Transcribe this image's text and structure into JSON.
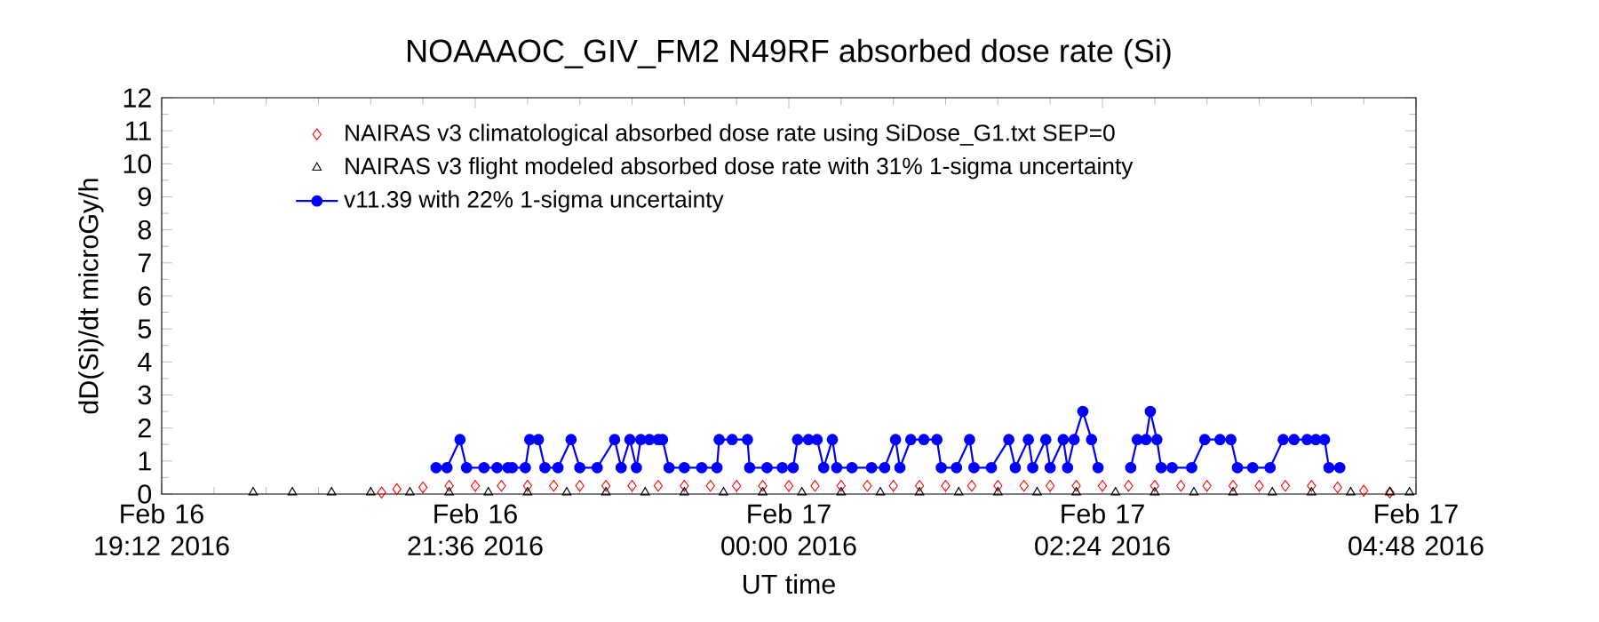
{
  "chart_data": {
    "type": "line",
    "title": "NOAAAOC_GIV_FM2 N49RF  absorbed dose rate (Si)",
    "xlabel": "UT time",
    "ylabel": "dD(Si)/dt microGy/h",
    "xlim": [
      "2016-02-16T19:12",
      "2016-02-17T04:48"
    ],
    "xticks": [
      {
        "value": "2016-02-16T19:12",
        "label": "Feb 16 19:12 2016"
      },
      {
        "value": "2016-02-16T21:36",
        "label": "Feb 16 21:36 2016"
      },
      {
        "value": "2016-02-17T00:00",
        "label": "Feb 17 00:00 2016"
      },
      {
        "value": "2016-02-17T02:24",
        "label": "Feb 17 02:24 2016"
      },
      {
        "value": "2016-02-17T04:48",
        "label": "Feb 17 04:48 2016"
      }
    ],
    "ylim": [
      0,
      12
    ],
    "yticks": [
      0,
      1,
      2,
      3,
      4,
      5,
      6,
      7,
      8,
      9,
      10,
      11,
      12
    ],
    "legend": "top left",
    "series": [
      {
        "name": "NAIRAS v3 climatological absorbed dose rate using SiDose_G1.txt SEP=0",
        "type": "scatter",
        "marker": "diamond",
        "color": "#ff0000",
        "x": [
          "2016-02-16T20:53",
          "2016-02-16T21:00",
          "2016-02-16T21:12",
          "2016-02-16T21:24",
          "2016-02-16T21:36",
          "2016-02-16T21:48",
          "2016-02-16T22:00",
          "2016-02-16T22:12",
          "2016-02-16T22:24",
          "2016-02-16T22:36",
          "2016-02-16T22:48",
          "2016-02-16T23:00",
          "2016-02-16T23:12",
          "2016-02-16T23:24",
          "2016-02-16T23:36",
          "2016-02-16T23:48",
          "2016-02-17T00:00",
          "2016-02-17T00:12",
          "2016-02-17T00:24",
          "2016-02-17T00:36",
          "2016-02-17T00:48",
          "2016-02-17T01:00",
          "2016-02-17T01:12",
          "2016-02-17T01:24",
          "2016-02-17T01:36",
          "2016-02-17T01:48",
          "2016-02-17T02:00",
          "2016-02-17T02:12",
          "2016-02-17T02:24",
          "2016-02-17T02:36",
          "2016-02-17T02:48",
          "2016-02-17T03:00",
          "2016-02-17T03:12",
          "2016-02-17T03:24",
          "2016-02-17T03:36",
          "2016-02-17T03:48",
          "2016-02-17T04:00",
          "2016-02-17T04:12",
          "2016-02-17T04:24",
          "2016-02-17T04:36"
        ],
        "values": [
          0.05,
          0.15,
          0.2,
          0.25,
          0.25,
          0.25,
          0.25,
          0.25,
          0.25,
          0.25,
          0.25,
          0.25,
          0.25,
          0.25,
          0.25,
          0.25,
          0.25,
          0.25,
          0.25,
          0.25,
          0.25,
          0.25,
          0.25,
          0.25,
          0.25,
          0.25,
          0.25,
          0.25,
          0.25,
          0.25,
          0.25,
          0.25,
          0.25,
          0.25,
          0.25,
          0.25,
          0.25,
          0.2,
          0.1,
          0.05
        ]
      },
      {
        "name": "NAIRAS v3 flight modeled absorbed dose rate with 31% 1-sigma uncertainty",
        "type": "scatter",
        "marker": "triangle",
        "color": "#000000",
        "x": [
          "2016-02-16T19:54",
          "2016-02-16T20:12",
          "2016-02-16T20:30",
          "2016-02-16T20:48",
          "2016-02-16T21:06",
          "2016-02-16T21:24",
          "2016-02-16T21:42",
          "2016-02-16T22:00",
          "2016-02-16T22:18",
          "2016-02-16T22:36",
          "2016-02-16T22:54",
          "2016-02-16T23:12",
          "2016-02-16T23:30",
          "2016-02-16T23:48",
          "2016-02-17T00:06",
          "2016-02-17T00:24",
          "2016-02-17T00:42",
          "2016-02-17T01:00",
          "2016-02-17T01:18",
          "2016-02-17T01:36",
          "2016-02-17T01:54",
          "2016-02-17T02:12",
          "2016-02-17T02:30",
          "2016-02-17T02:48",
          "2016-02-17T03:06",
          "2016-02-17T03:24",
          "2016-02-17T03:42",
          "2016-02-17T04:00",
          "2016-02-17T04:18",
          "2016-02-17T04:36",
          "2016-02-17T04:45"
        ],
        "values": [
          0.05,
          0.05,
          0.05,
          0.05,
          0.05,
          0.05,
          0.05,
          0.05,
          0.05,
          0.05,
          0.05,
          0.05,
          0.05,
          0.05,
          0.05,
          0.05,
          0.05,
          0.05,
          0.05,
          0.05,
          0.05,
          0.05,
          0.05,
          0.05,
          0.05,
          0.05,
          0.05,
          0.05,
          0.05,
          0.05,
          0.05
        ]
      },
      {
        "name": "v11.39 with 22% 1-sigma uncertainty",
        "type": "line",
        "marker": "circle",
        "color": "#0000ff",
        "x": [
          "2016-02-16T21:18",
          "2016-02-16T21:23",
          "2016-02-16T21:29",
          "2016-02-16T21:32",
          "2016-02-16T21:40",
          "2016-02-16T21:46",
          "2016-02-16T21:51",
          "2016-02-16T21:52",
          "2016-02-16T21:53",
          "2016-02-16T21:59",
          "2016-02-16T22:01",
          "2016-02-16T22:05",
          "2016-02-16T22:08",
          "2016-02-16T22:14",
          "2016-02-16T22:20",
          "2016-02-16T22:24",
          "2016-02-16T22:32",
          "2016-02-16T22:40",
          "2016-02-16T22:43",
          "2016-02-16T22:47",
          "2016-02-16T22:50",
          "2016-02-16T22:52",
          "2016-02-16T22:56",
          "2016-02-16T23:00",
          "2016-02-16T23:02",
          "2016-02-16T23:05",
          "2016-02-16T23:12",
          "2016-02-16T23:20",
          "2016-02-16T23:27",
          "2016-02-16T23:28",
          "2016-02-16T23:34",
          "2016-02-16T23:41",
          "2016-02-16T23:42",
          "2016-02-16T23:50",
          "2016-02-16T23:57",
          "2016-02-17T00:02",
          "2016-02-17T00:04",
          "2016-02-17T00:09",
          "2016-02-17T00:13",
          "2016-02-17T00:16",
          "2016-02-17T00:20",
          "2016-02-17T00:22",
          "2016-02-17T00:29",
          "2016-02-17T00:38",
          "2016-02-17T00:44",
          "2016-02-17T00:49",
          "2016-02-17T00:51",
          "2016-02-17T00:56",
          "2016-02-17T01:02",
          "2016-02-17T01:08",
          "2016-02-17T01:10",
          "2016-02-17T01:17",
          "2016-02-17T01:23",
          "2016-02-17T01:25",
          "2016-02-17T01:33",
          "2016-02-17T01:41",
          "2016-02-17T01:44",
          "2016-02-17T01:50",
          "2016-02-17T01:52",
          "2016-02-17T01:58",
          "2016-02-17T02:00",
          "2016-02-17T02:06",
          "2016-02-17T02:08",
          "2016-02-17T02:11",
          "2016-02-17T02:15",
          "2016-02-17T02:19",
          "2016-02-17T02:22",
          "2016-02-17T02:28",
          "2016-02-17T02:37",
          "2016-02-17T02:40",
          "2016-02-17T02:44",
          "2016-02-17T02:46",
          "2016-02-17T02:49",
          "2016-02-17T02:51",
          "2016-02-17T02:56",
          "2016-02-17T03:05",
          "2016-02-17T03:11",
          "2016-02-17T03:18",
          "2016-02-17T03:23",
          "2016-02-17T03:26",
          "2016-02-17T03:33",
          "2016-02-17T03:41",
          "2016-02-17T03:47",
          "2016-02-17T03:52",
          "2016-02-17T03:58",
          "2016-02-17T04:02",
          "2016-02-17T04:06",
          "2016-02-17T04:08",
          "2016-02-17T04:13"
        ],
        "values": [
          0.8,
          0.8,
          1.65,
          0.8,
          0.8,
          0.8,
          0.8,
          null,
          0.8,
          0.8,
          1.65,
          1.65,
          0.8,
          0.8,
          1.65,
          0.8,
          0.8,
          1.65,
          0.8,
          1.65,
          0.8,
          1.65,
          1.65,
          1.65,
          1.65,
          0.8,
          0.8,
          0.8,
          0.8,
          1.65,
          1.65,
          1.65,
          0.8,
          0.8,
          0.8,
          0.8,
          1.65,
          1.65,
          1.65,
          0.8,
          1.65,
          0.8,
          0.8,
          0.8,
          0.8,
          1.65,
          0.8,
          1.65,
          1.65,
          1.65,
          0.8,
          0.8,
          1.65,
          0.8,
          0.8,
          1.65,
          0.8,
          1.65,
          0.8,
          1.65,
          0.8,
          1.65,
          0.8,
          1.65,
          2.5,
          1.65,
          0.8,
          null,
          0.8,
          1.65,
          1.65,
          2.5,
          1.65,
          0.8,
          0.8,
          0.8,
          1.65,
          1.65,
          1.65,
          0.8,
          0.8,
          0.8,
          1.65,
          1.65,
          1.65,
          1.65,
          1.65,
          0.8,
          0.8
        ]
      }
    ]
  }
}
